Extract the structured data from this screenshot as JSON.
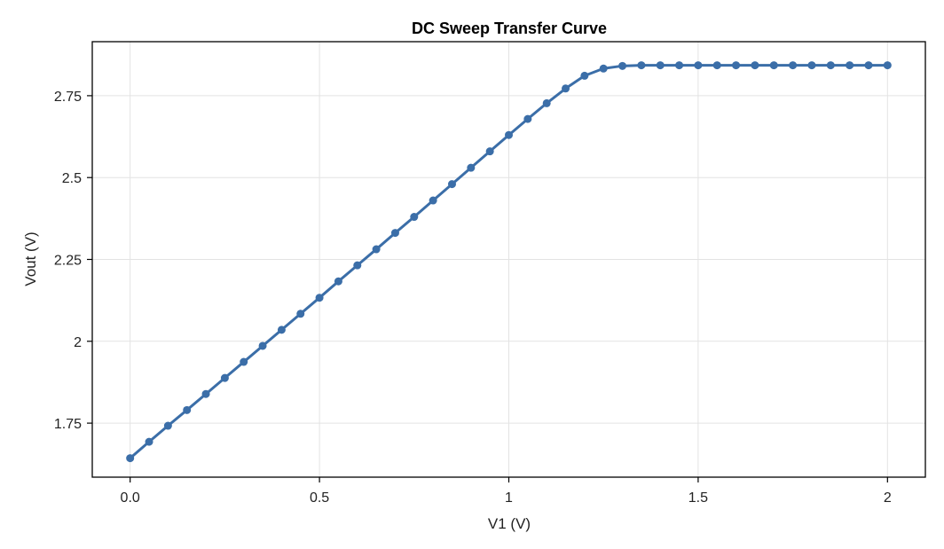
{
  "chart_data": {
    "type": "line",
    "title": "DC Sweep Transfer Curve",
    "xlabel": "V1 (V)",
    "ylabel": "Vout (V)",
    "xlim": [
      -0.1,
      2.1
    ],
    "ylim": [
      1.585,
      2.915
    ],
    "x_ticks": [
      {
        "value": 0.0,
        "label": "0.0"
      },
      {
        "value": 0.5,
        "label": "0.5"
      },
      {
        "value": 1.0,
        "label": "1"
      },
      {
        "value": 1.5,
        "label": "1.5"
      },
      {
        "value": 2.0,
        "label": "2"
      }
    ],
    "y_ticks": [
      {
        "value": 1.75,
        "label": "1.75"
      },
      {
        "value": 2.0,
        "label": "2"
      },
      {
        "value": 2.25,
        "label": "2.25"
      },
      {
        "value": 2.5,
        "label": "2.5"
      },
      {
        "value": 2.75,
        "label": "2.75"
      }
    ],
    "grid": true,
    "color": "#3b6ea8",
    "series": [
      {
        "x": [
          0.0,
          0.05,
          0.1,
          0.15,
          0.2,
          0.25,
          0.3,
          0.35,
          0.4,
          0.45,
          0.5,
          0.55,
          0.6,
          0.65,
          0.7,
          0.75,
          0.8,
          0.85,
          0.9,
          0.95,
          1.0,
          1.05,
          1.1,
          1.15,
          1.2,
          1.25,
          1.3,
          1.35,
          1.4,
          1.45,
          1.5,
          1.55,
          1.6,
          1.65,
          1.7,
          1.75,
          1.8,
          1.85,
          1.9,
          1.95,
          2.0
        ],
        "y": [
          1.643,
          1.693,
          1.742,
          1.79,
          1.839,
          1.888,
          1.937,
          1.986,
          2.035,
          2.084,
          2.133,
          2.183,
          2.232,
          2.281,
          2.331,
          2.38,
          2.43,
          2.48,
          2.53,
          2.58,
          2.63,
          2.679,
          2.727,
          2.772,
          2.811,
          2.833,
          2.841,
          2.843,
          2.843,
          2.843,
          2.843,
          2.843,
          2.843,
          2.843,
          2.843,
          2.843,
          2.843,
          2.843,
          2.843,
          2.843,
          2.843
        ]
      }
    ]
  }
}
